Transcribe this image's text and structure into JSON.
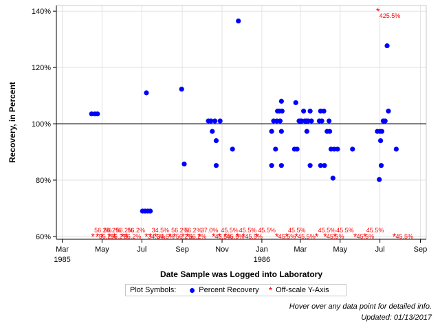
{
  "chart_data": {
    "type": "scatter",
    "xlabel": "Date Sample was Logged into Laboratory",
    "ylabel": "Recovery, in Percent",
    "x_ticks": [
      {
        "date": "1985-03-01",
        "label": "Mar",
        "year": "1985"
      },
      {
        "date": "1985-05-01",
        "label": "May",
        "year": ""
      },
      {
        "date": "1985-07-01",
        "label": "Jul",
        "year": ""
      },
      {
        "date": "1985-09-01",
        "label": "Sep",
        "year": ""
      },
      {
        "date": "1985-11-01",
        "label": "Nov",
        "year": ""
      },
      {
        "date": "1986-01-01",
        "label": "Jan",
        "year": "1986"
      },
      {
        "date": "1986-03-01",
        "label": "Mar",
        "year": ""
      },
      {
        "date": "1986-05-01",
        "label": "May",
        "year": ""
      },
      {
        "date": "1986-07-01",
        "label": "Jul",
        "year": ""
      },
      {
        "date": "1986-09-01",
        "label": "Sep",
        "year": ""
      }
    ],
    "xlim": [
      "1985-02-20",
      "1986-09-10"
    ],
    "y_ticks": [
      60,
      80,
      100,
      120,
      140
    ],
    "y_tick_labels": [
      "60%",
      "80%",
      "100%",
      "120%",
      "140%"
    ],
    "ylim": [
      59,
      142
    ],
    "reference_line": 100,
    "legend_title": "Plot Symbols:",
    "colors": {
      "recovery": "#0000ff",
      "offscale": "#ff0000",
      "grid": "#e2e2e2"
    },
    "series": [
      {
        "name": "Percent Recovery",
        "marker": "dot",
        "points": [
          {
            "x": "1985-04-15",
            "y": 103.5
          },
          {
            "x": "1985-04-20",
            "y": 103.5
          },
          {
            "x": "1985-04-24",
            "y": 103.5
          },
          {
            "x": "1985-07-02",
            "y": 69
          },
          {
            "x": "1985-07-06",
            "y": 69
          },
          {
            "x": "1985-07-10",
            "y": 69
          },
          {
            "x": "1985-07-14",
            "y": 69
          },
          {
            "x": "1985-07-08",
            "y": 111
          },
          {
            "x": "1985-08-31",
            "y": 112.3
          },
          {
            "x": "1985-09-04",
            "y": 85.7
          },
          {
            "x": "1985-10-11",
            "y": 101
          },
          {
            "x": "1985-10-15",
            "y": 101
          },
          {
            "x": "1985-10-17",
            "y": 97.3
          },
          {
            "x": "1985-10-21",
            "y": 101
          },
          {
            "x": "1985-10-23",
            "y": 94
          },
          {
            "x": "1985-10-23",
            "y": 85.2
          },
          {
            "x": "1985-10-29",
            "y": 101
          },
          {
            "x": "1985-11-17",
            "y": 91
          },
          {
            "x": "1985-11-26",
            "y": 136.5
          },
          {
            "x": "1986-01-16",
            "y": 97.3
          },
          {
            "x": "1986-01-16",
            "y": 85.2
          },
          {
            "x": "1986-01-19",
            "y": 101
          },
          {
            "x": "1986-01-22",
            "y": 91
          },
          {
            "x": "1986-01-24",
            "y": 101
          },
          {
            "x": "1986-01-25",
            "y": 104.5
          },
          {
            "x": "1986-01-28",
            "y": 104.5
          },
          {
            "x": "1986-01-29",
            "y": 101
          },
          {
            "x": "1986-01-31",
            "y": 108
          },
          {
            "x": "1986-01-31",
            "y": 97.3
          },
          {
            "x": "1986-01-31",
            "y": 85.2
          },
          {
            "x": "1986-02-01",
            "y": 104.5
          },
          {
            "x": "1986-02-20",
            "y": 91
          },
          {
            "x": "1986-02-22",
            "y": 107.5
          },
          {
            "x": "1986-02-24",
            "y": 91
          },
          {
            "x": "1986-02-27",
            "y": 101
          },
          {
            "x": "1986-03-01",
            "y": 101
          },
          {
            "x": "1986-03-03",
            "y": 101
          },
          {
            "x": "1986-03-06",
            "y": 104.5
          },
          {
            "x": "1986-03-08",
            "y": 101
          },
          {
            "x": "1986-03-10",
            "y": 101
          },
          {
            "x": "1986-03-11",
            "y": 97.3
          },
          {
            "x": "1986-03-13",
            "y": 101
          },
          {
            "x": "1986-03-16",
            "y": 104.5
          },
          {
            "x": "1986-03-16",
            "y": 85.2
          },
          {
            "x": "1986-03-18",
            "y": 101
          },
          {
            "x": "1986-03-30",
            "y": 101
          },
          {
            "x": "1986-04-01",
            "y": 104.5
          },
          {
            "x": "1986-04-01",
            "y": 85.2
          },
          {
            "x": "1986-04-03",
            "y": 101
          },
          {
            "x": "1986-04-06",
            "y": 104.5
          },
          {
            "x": "1986-04-07",
            "y": 85.2
          },
          {
            "x": "1986-04-11",
            "y": 97.3
          },
          {
            "x": "1986-04-14",
            "y": 101
          },
          {
            "x": "1986-04-15",
            "y": 97.3
          },
          {
            "x": "1986-04-17",
            "y": 91
          },
          {
            "x": "1986-04-20",
            "y": 80.7
          },
          {
            "x": "1986-04-22",
            "y": 91
          },
          {
            "x": "1986-04-27",
            "y": 91
          },
          {
            "x": "1986-05-20",
            "y": 91
          },
          {
            "x": "1986-06-27",
            "y": 97.3
          },
          {
            "x": "1986-06-30",
            "y": 80.2
          },
          {
            "x": "1986-07-01",
            "y": 97.3
          },
          {
            "x": "1986-07-02",
            "y": 94
          },
          {
            "x": "1986-07-03",
            "y": 85.2
          },
          {
            "x": "1986-07-04",
            "y": 97.3
          },
          {
            "x": "1986-07-06",
            "y": 101
          },
          {
            "x": "1986-07-09",
            "y": 101
          },
          {
            "x": "1986-07-12",
            "y": 127.7
          },
          {
            "x": "1986-07-14",
            "y": 104.5
          },
          {
            "x": "1986-07-26",
            "y": 91
          }
        ]
      },
      {
        "name": "Off-scale Y-Axis",
        "marker": "asterisk",
        "points": [
          {
            "x": "1985-04-17",
            "y": 60,
            "label": "56.2%"
          },
          {
            "x": "1985-04-24",
            "y": 60,
            "label": "56.2%"
          },
          {
            "x": "1985-05-01",
            "y": 60,
            "label": "56.2%"
          },
          {
            "x": "1985-05-12",
            "y": 60,
            "label": "56.2%"
          },
          {
            "x": "1985-05-20",
            "y": 60,
            "label": "56.2%"
          },
          {
            "x": "1985-06-01",
            "y": 60,
            "label": "56.2%"
          },
          {
            "x": "1985-06-07",
            "y": 60,
            "label": "56.2%"
          },
          {
            "x": "1985-07-08",
            "y": 60,
            "label": "34.5%"
          },
          {
            "x": "1985-07-14",
            "y": 60,
            "label": "34.5%"
          },
          {
            "x": "1985-07-22",
            "y": 60,
            "label": "34.5%"
          },
          {
            "x": "1985-08-13",
            "y": 60,
            "label": "56.2%"
          },
          {
            "x": "1985-08-20",
            "y": 60,
            "label": "56.2%"
          },
          {
            "x": "1985-09-02",
            "y": 60,
            "label": "56.2%"
          },
          {
            "x": "1985-09-09",
            "y": 60,
            "label": "56.2%"
          },
          {
            "x": "1985-09-27",
            "y": 60,
            "label": "37.0%"
          },
          {
            "x": "1985-10-19",
            "y": 60,
            "label": "45.5%"
          },
          {
            "x": "1985-10-28",
            "y": 60,
            "label": "45.5%"
          },
          {
            "x": "1985-11-06",
            "y": 60,
            "label": "45.5%"
          },
          {
            "x": "1985-11-25",
            "y": 60,
            "label": "45.5%"
          },
          {
            "x": "1985-12-04",
            "y": 60,
            "label": "45.5%"
          },
          {
            "x": "1985-12-24",
            "y": 60,
            "label": "45.5%"
          },
          {
            "x": "1986-01-24",
            "y": 60,
            "label": "45.5%"
          },
          {
            "x": "1986-02-08",
            "y": 60,
            "label": "45.5%"
          },
          {
            "x": "1986-02-23",
            "y": 60,
            "label": "45.5%"
          },
          {
            "x": "1986-03-26",
            "y": 60,
            "label": "45.5%"
          },
          {
            "x": "1986-04-08",
            "y": 60,
            "label": "45.5%"
          },
          {
            "x": "1986-04-23",
            "y": 60,
            "label": "45.5%"
          },
          {
            "x": "1986-05-24",
            "y": 60,
            "label": "45.5%"
          },
          {
            "x": "1986-06-08",
            "y": 60,
            "label": "45.5%"
          },
          {
            "x": "1986-06-28",
            "y": 140,
            "label": "425.5%"
          },
          {
            "x": "1986-07-23",
            "y": 60,
            "label": "45.5%"
          }
        ]
      }
    ]
  },
  "notes": {
    "hover": "Hover over any data point for detailed info.",
    "updated": "Updated: 01/13/2017"
  }
}
